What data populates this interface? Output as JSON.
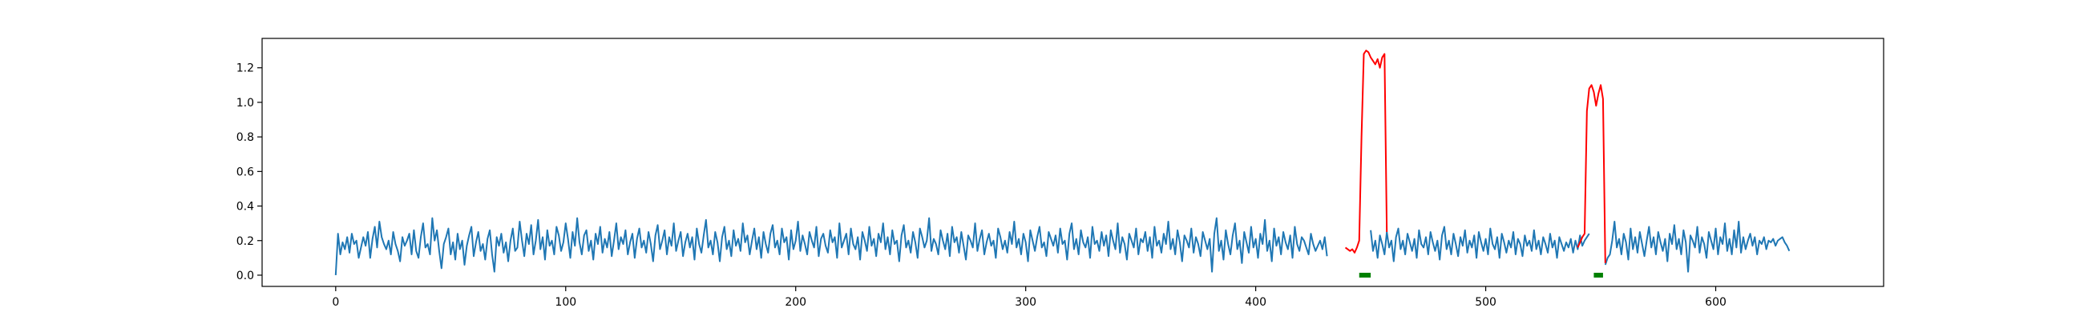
{
  "chart_data": {
    "type": "line",
    "title": "",
    "xlabel": "",
    "ylabel": "",
    "xlim": [
      -32,
      673
    ],
    "ylim": [
      -0.065,
      1.37
    ],
    "x_ticks": [
      0,
      100,
      200,
      300,
      400,
      500,
      600
    ],
    "x_tick_labels": [
      "0",
      "100",
      "200",
      "300",
      "400",
      "500",
      "600"
    ],
    "y_ticks": [
      0.0,
      0.2,
      0.4,
      0.6,
      0.8,
      1.0,
      1.2
    ],
    "y_tick_labels": [
      "0.0",
      "0.2",
      "0.4",
      "0.6",
      "0.8",
      "1.0",
      "1.2"
    ],
    "grid": false,
    "legend": "none",
    "colors": {
      "signal": "#1f77b4",
      "anomaly": "#ff0000",
      "marker": "#008000"
    },
    "series_baseline": {
      "x_start": 0,
      "x_step": 1,
      "values": [
        0.0,
        0.24,
        0.12,
        0.19,
        0.15,
        0.22,
        0.13,
        0.24,
        0.18,
        0.2,
        0.1,
        0.16,
        0.22,
        0.17,
        0.25,
        0.1,
        0.21,
        0.28,
        0.16,
        0.31,
        0.22,
        0.18,
        0.15,
        0.2,
        0.12,
        0.25,
        0.18,
        0.14,
        0.08,
        0.22,
        0.17,
        0.2,
        0.24,
        0.12,
        0.26,
        0.14,
        0.1,
        0.22,
        0.3,
        0.16,
        0.18,
        0.12,
        0.33,
        0.2,
        0.26,
        0.14,
        0.04,
        0.18,
        0.22,
        0.27,
        0.12,
        0.19,
        0.09,
        0.24,
        0.15,
        0.2,
        0.06,
        0.17,
        0.23,
        0.28,
        0.11,
        0.19,
        0.25,
        0.14,
        0.18,
        0.09,
        0.21,
        0.26,
        0.12,
        0.02,
        0.22,
        0.17,
        0.24,
        0.13,
        0.19,
        0.08,
        0.2,
        0.27,
        0.14,
        0.16,
        0.31,
        0.2,
        0.11,
        0.24,
        0.18,
        0.29,
        0.12,
        0.2,
        0.32,
        0.15,
        0.22,
        0.09,
        0.26,
        0.17,
        0.2,
        0.12,
        0.28,
        0.23,
        0.14,
        0.19,
        0.3,
        0.21,
        0.1,
        0.25,
        0.17,
        0.33,
        0.19,
        0.12,
        0.23,
        0.26,
        0.14,
        0.2,
        0.09,
        0.24,
        0.18,
        0.28,
        0.13,
        0.21,
        0.16,
        0.25,
        0.11,
        0.2,
        0.3,
        0.15,
        0.22,
        0.18,
        0.26,
        0.12,
        0.19,
        0.24,
        0.1,
        0.21,
        0.27,
        0.16,
        0.2,
        0.13,
        0.25,
        0.18,
        0.08,
        0.23,
        0.29,
        0.15,
        0.2,
        0.26,
        0.12,
        0.22,
        0.17,
        0.3,
        0.14,
        0.2,
        0.25,
        0.11,
        0.19,
        0.24,
        0.16,
        0.22,
        0.09,
        0.27,
        0.18,
        0.13,
        0.23,
        0.32,
        0.16,
        0.2,
        0.12,
        0.25,
        0.19,
        0.08,
        0.22,
        0.28,
        0.15,
        0.2,
        0.11,
        0.26,
        0.17,
        0.21,
        0.14,
        0.3,
        0.19,
        0.23,
        0.12,
        0.2,
        0.27,
        0.15,
        0.22,
        0.1,
        0.25,
        0.18,
        0.13,
        0.24,
        0.29,
        0.16,
        0.2,
        0.12,
        0.27,
        0.19,
        0.22,
        0.09,
        0.26,
        0.15,
        0.2,
        0.31,
        0.14,
        0.23,
        0.18,
        0.12,
        0.25,
        0.2,
        0.16,
        0.28,
        0.11,
        0.21,
        0.24,
        0.17,
        0.13,
        0.26,
        0.19,
        0.22,
        0.1,
        0.3,
        0.16,
        0.2,
        0.24,
        0.12,
        0.27,
        0.18,
        0.15,
        0.22,
        0.09,
        0.25,
        0.2,
        0.14,
        0.28,
        0.17,
        0.21,
        0.11,
        0.24,
        0.19,
        0.3,
        0.15,
        0.22,
        0.12,
        0.26,
        0.18,
        0.2,
        0.08,
        0.23,
        0.29,
        0.16,
        0.2,
        0.13,
        0.25,
        0.19,
        0.1,
        0.27,
        0.22,
        0.16,
        0.2,
        0.33,
        0.14,
        0.21,
        0.18,
        0.12,
        0.26,
        0.2,
        0.15,
        0.24,
        0.11,
        0.28,
        0.19,
        0.22,
        0.13,
        0.25,
        0.17,
        0.09,
        0.23,
        0.2,
        0.16,
        0.3,
        0.14,
        0.21,
        0.26,
        0.12,
        0.19,
        0.24,
        0.17,
        0.2,
        0.1,
        0.27,
        0.22,
        0.15,
        0.2,
        0.13,
        0.25,
        0.18,
        0.31,
        0.16,
        0.21,
        0.12,
        0.24,
        0.19,
        0.08,
        0.26,
        0.2,
        0.14,
        0.22,
        0.28,
        0.16,
        0.19,
        0.11,
        0.25,
        0.21,
        0.17,
        0.23,
        0.13,
        0.27,
        0.18,
        0.2,
        0.09,
        0.24,
        0.3,
        0.15,
        0.21,
        0.12,
        0.26,
        0.19,
        0.16,
        0.22,
        0.1,
        0.28,
        0.18,
        0.2,
        0.14,
        0.25,
        0.17,
        0.23,
        0.11,
        0.26,
        0.2,
        0.15,
        0.3,
        0.13,
        0.22,
        0.18,
        0.09,
        0.24,
        0.2,
        0.16,
        0.27,
        0.12,
        0.21,
        0.19,
        0.25,
        0.14,
        0.22,
        0.1,
        0.28,
        0.17,
        0.2,
        0.13,
        0.24,
        0.18,
        0.31,
        0.15,
        0.21,
        0.12,
        0.26,
        0.19,
        0.08,
        0.23,
        0.2,
        0.16,
        0.27,
        0.13,
        0.22,
        0.18,
        0.11,
        0.25,
        0.2,
        0.15,
        0.21,
        0.02,
        0.24,
        0.33,
        0.14,
        0.2,
        0.09,
        0.26,
        0.18,
        0.12,
        0.23,
        0.3,
        0.15,
        0.2,
        0.07,
        0.25,
        0.19,
        0.13,
        0.28,
        0.16,
        0.21,
        0.1,
        0.24,
        0.18,
        0.32,
        0.14,
        0.2,
        0.08,
        0.27,
        0.17,
        0.22,
        0.12,
        0.25,
        0.19,
        0.15,
        0.23,
        0.1,
        0.28,
        0.18,
        0.14,
        0.22,
        0.2,
        0.16,
        0.12,
        0.24,
        0.18,
        0.14,
        0.17,
        0.2,
        0.15,
        0.22,
        0.11
      ],
      "after_gap_1": {
        "x_start": 450,
        "values": [
          0.26,
          0.14,
          0.2,
          0.1,
          0.23,
          0.18,
          0.12,
          0.25,
          0.16,
          0.2,
          0.08,
          0.22,
          0.27,
          0.15,
          0.2,
          0.12,
          0.24,
          0.19,
          0.14,
          0.21,
          0.1,
          0.26,
          0.18,
          0.16,
          0.22,
          0.12,
          0.25,
          0.19,
          0.14,
          0.2,
          0.09,
          0.23,
          0.28,
          0.15,
          0.2,
          0.12,
          0.24,
          0.18,
          0.11,
          0.22,
          0.17,
          0.26,
          0.13,
          0.2,
          0.16,
          0.23,
          0.1,
          0.25,
          0.19,
          0.14,
          0.21,
          0.12,
          0.27,
          0.18,
          0.15,
          0.22,
          0.1,
          0.24,
          0.19,
          0.13,
          0.2,
          0.16,
          0.25,
          0.12,
          0.21,
          0.18,
          0.11,
          0.23,
          0.17,
          0.2,
          0.14,
          0.26,
          0.15,
          0.2,
          0.12,
          0.22,
          0.18,
          0.13,
          0.24,
          0.16,
          0.2,
          0.1,
          0.22,
          0.18,
          0.14,
          0.19,
          0.16,
          0.21,
          0.13,
          0.2,
          0.15,
          0.23,
          0.17,
          0.2,
          0.22,
          0.24
        ]
      },
      "after_gap_2": {
        "x_start": 552,
        "values": [
          0.06,
          0.1,
          0.12,
          0.2,
          0.31,
          0.16,
          0.21,
          0.12,
          0.24,
          0.19,
          0.09,
          0.27,
          0.15,
          0.22,
          0.13,
          0.25,
          0.18,
          0.11,
          0.2,
          0.28,
          0.16,
          0.22,
          0.12,
          0.25,
          0.19,
          0.14,
          0.21,
          0.08,
          0.24,
          0.18,
          0.29,
          0.15,
          0.21,
          0.12,
          0.26,
          0.19,
          0.02,
          0.23,
          0.2,
          0.16,
          0.28,
          0.13,
          0.22,
          0.18,
          0.1,
          0.25,
          0.2,
          0.15,
          0.27,
          0.12,
          0.22,
          0.18,
          0.3,
          0.14,
          0.21,
          0.12,
          0.26,
          0.16,
          0.31,
          0.13,
          0.22,
          0.15,
          0.2,
          0.24,
          0.17,
          0.22,
          0.12,
          0.2,
          0.18,
          0.22,
          0.15,
          0.2,
          0.19,
          0.21,
          0.17,
          0.2,
          0.21,
          0.22,
          0.19,
          0.17,
          0.14
        ]
      }
    },
    "series_anomalies": [
      {
        "x_start": 439,
        "values": [
          0.16,
          0.15,
          0.14,
          0.15,
          0.13,
          0.16,
          0.2,
          0.8,
          1.28,
          1.3,
          1.29,
          1.26,
          1.24,
          1.22,
          1.25,
          1.2,
          1.26,
          1.28,
          0.25
        ]
      },
      {
        "x_start": 540,
        "values": [
          0.16,
          0.19,
          0.22,
          0.24,
          0.95,
          1.08,
          1.1,
          1.06,
          0.98,
          1.05,
          1.1,
          1.02,
          0.07
        ]
      }
    ],
    "anomaly_markers": [
      {
        "x_from": 445,
        "x_to": 450,
        "y": 0.0
      },
      {
        "x_from": 547,
        "x_to": 551,
        "y": 0.0
      }
    ]
  }
}
